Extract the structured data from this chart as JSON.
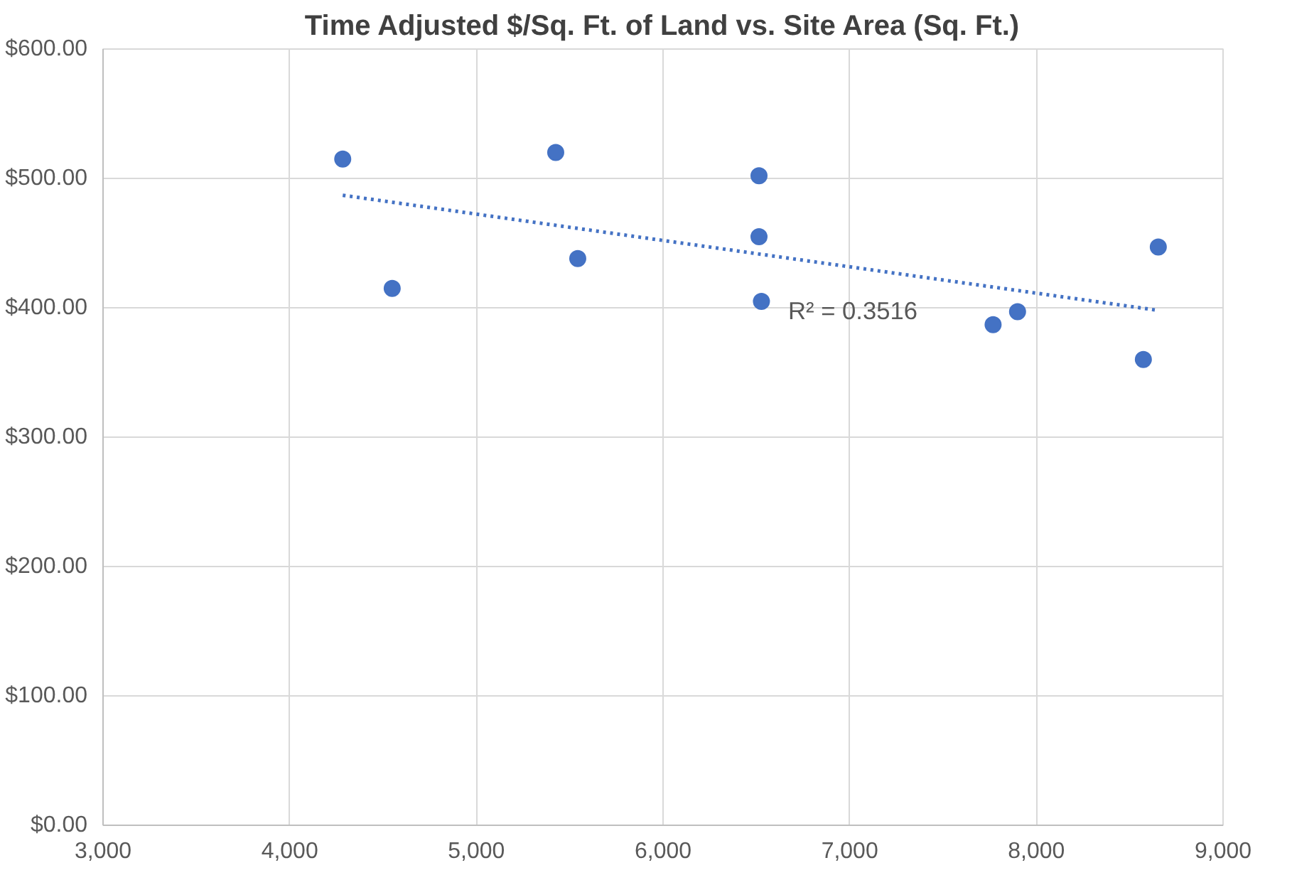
{
  "chart_data": {
    "type": "scatter",
    "title": "Time Adjusted $/Sq. Ft. of Land vs. Site Area (Sq. Ft.)",
    "xlim": [
      3000,
      9000
    ],
    "xticks": [
      {
        "value": 3000,
        "label": "3,000"
      },
      {
        "value": 4000,
        "label": "4,000"
      },
      {
        "value": 5000,
        "label": "5,000"
      },
      {
        "value": 6000,
        "label": "6,000"
      },
      {
        "value": 7000,
        "label": "7,000"
      },
      {
        "value": 8000,
        "label": "8,000"
      },
      {
        "value": 9000,
        "label": "9,000"
      }
    ],
    "ylim": [
      0,
      600
    ],
    "yticks": [
      {
        "value": 0,
        "label": "$0.00"
      },
      {
        "value": 100,
        "label": "$100.00"
      },
      {
        "value": 200,
        "label": "$200.00"
      },
      {
        "value": 300,
        "label": "$300.00"
      },
      {
        "value": 400,
        "label": "$400.00"
      },
      {
        "value": 500,
        "label": "$500.00"
      },
      {
        "value": 600,
        "label": "$600.00"
      }
    ],
    "grid": true,
    "series": [
      {
        "marker": "circle",
        "color": "#4472c4",
        "x": [
          4284,
          4549,
          5425,
          5543,
          6514,
          6514,
          6527,
          7768,
          7899,
          8573,
          8653
        ],
        "values": [
          515,
          415,
          520,
          438,
          502,
          455,
          405,
          387,
          397,
          360,
          447
        ]
      },
      {
        "type": "line",
        "marker": "none",
        "color": "#4472c4",
        "line_style": "dotted",
        "x": [
          4284,
          8653
        ],
        "values": [
          487,
          398
        ]
      }
    ],
    "annotations": [
      "R² = 0.3516"
    ]
  }
}
